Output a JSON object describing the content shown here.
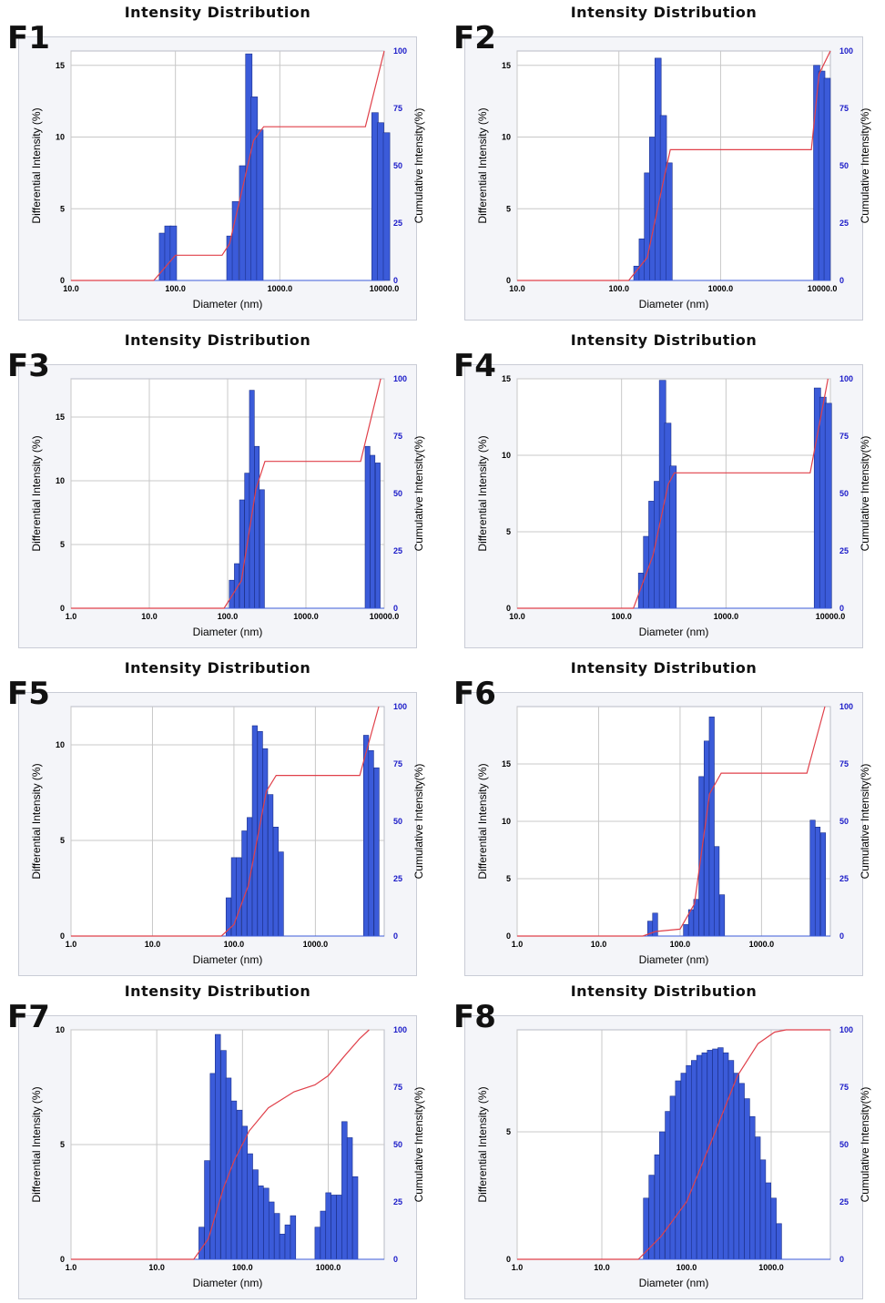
{
  "chart_data": [
    {
      "type": "bar",
      "panel": "F1",
      "title": "Intensity Distribution",
      "xlabel": "Diameter (nm)",
      "ylabel": "Differential Intensity (%)",
      "y2label": "Cumulative Intensity(%)",
      "x_scale": "log",
      "xlim": [
        10,
        10000
      ],
      "x_ticks": [
        "10.0",
        "100.0",
        "1000.0",
        "10000.0"
      ],
      "ylim": [
        0,
        16
      ],
      "y_ticks": [
        "0",
        "5",
        "10",
        "15"
      ],
      "y2_ticks": [
        "0",
        "25",
        "50",
        "75",
        "100"
      ],
      "grid": true,
      "bars": [
        {
          "x": 70,
          "y": 3.3
        },
        {
          "x": 79,
          "y": 3.8
        },
        {
          "x": 89,
          "y": 3.8
        },
        {
          "x": 310,
          "y": 3.1
        },
        {
          "x": 350,
          "y": 5.5
        },
        {
          "x": 410,
          "y": 8.0
        },
        {
          "x": 470,
          "y": 15.8
        },
        {
          "x": 530,
          "y": 12.8
        },
        {
          "x": 600,
          "y": 10.5
        },
        {
          "x": 7600,
          "y": 11.7
        },
        {
          "x": 8600,
          "y": 11.0
        },
        {
          "x": 9800,
          "y": 10.3
        }
      ],
      "cumulative": [
        {
          "x": 10,
          "y": 0
        },
        {
          "x": 62,
          "y": 0
        },
        {
          "x": 100,
          "y": 11
        },
        {
          "x": 280,
          "y": 11
        },
        {
          "x": 330,
          "y": 16
        },
        {
          "x": 560,
          "y": 61
        },
        {
          "x": 700,
          "y": 67
        },
        {
          "x": 6600,
          "y": 67
        },
        {
          "x": 10000,
          "y": 100
        }
      ]
    },
    {
      "type": "bar",
      "panel": "F2",
      "title": "Intensity Distribution",
      "xlabel": "Diameter (nm)",
      "ylabel": "Differential Intensity (%)",
      "y2label": "Cumulative Intensity(%)",
      "x_scale": "log",
      "xlim": [
        10,
        12000
      ],
      "x_ticks": [
        "10.0",
        "100.0",
        "1000.0",
        "10000.0"
      ],
      "ylim": [
        0,
        16
      ],
      "y_ticks": [
        "0",
        "5",
        "10",
        "15"
      ],
      "y2_ticks": [
        "0",
        "25",
        "50",
        "75",
        "100"
      ],
      "grid": true,
      "bars": [
        {
          "x": 140,
          "y": 1.0
        },
        {
          "x": 158,
          "y": 2.9
        },
        {
          "x": 178,
          "y": 7.5
        },
        {
          "x": 200,
          "y": 10.0
        },
        {
          "x": 226,
          "y": 15.5
        },
        {
          "x": 255,
          "y": 11.5
        },
        {
          "x": 290,
          "y": 8.2
        },
        {
          "x": 8200,
          "y": 15.0
        },
        {
          "x": 9200,
          "y": 14.6
        },
        {
          "x": 10400,
          "y": 14.1
        }
      ],
      "cumulative": [
        {
          "x": 10,
          "y": 0
        },
        {
          "x": 125,
          "y": 0
        },
        {
          "x": 190,
          "y": 10
        },
        {
          "x": 270,
          "y": 42
        },
        {
          "x": 320,
          "y": 57
        },
        {
          "x": 7800,
          "y": 57
        },
        {
          "x": 9300,
          "y": 90
        },
        {
          "x": 12000,
          "y": 100
        }
      ]
    },
    {
      "type": "bar",
      "panel": "F3",
      "title": "Intensity Distribution",
      "xlabel": "Diameter (nm)",
      "ylabel": "Differential Intensity (%)",
      "y2label": "Cumulative Intensity(%)",
      "x_scale": "log",
      "xlim": [
        1,
        10000
      ],
      "x_ticks": [
        "1.0",
        "10.0",
        "100.0",
        "1000.0",
        "10000.0"
      ],
      "ylim": [
        0,
        18
      ],
      "y_ticks": [
        "0",
        "5",
        "10",
        "15"
      ],
      "y2_ticks": [
        "0",
        "25",
        "50",
        "75",
        "100"
      ],
      "grid": true,
      "bars": [
        {
          "x": 105,
          "y": 2.2
        },
        {
          "x": 122,
          "y": 3.5
        },
        {
          "x": 142,
          "y": 8.5
        },
        {
          "x": 165,
          "y": 10.6
        },
        {
          "x": 190,
          "y": 17.1
        },
        {
          "x": 220,
          "y": 12.7
        },
        {
          "x": 256,
          "y": 9.3
        },
        {
          "x": 5700,
          "y": 12.7
        },
        {
          "x": 6600,
          "y": 12.0
        },
        {
          "x": 7700,
          "y": 11.4
        }
      ],
      "cumulative": [
        {
          "x": 1,
          "y": 0
        },
        {
          "x": 90,
          "y": 0
        },
        {
          "x": 150,
          "y": 12
        },
        {
          "x": 230,
          "y": 52
        },
        {
          "x": 300,
          "y": 64
        },
        {
          "x": 5000,
          "y": 64
        },
        {
          "x": 9000,
          "y": 100
        }
      ]
    },
    {
      "type": "bar",
      "panel": "F4",
      "title": "Intensity Distribution",
      "xlabel": "Diameter (nm)",
      "ylabel": "Differential Intensity (%)",
      "y2label": "Cumulative Intensity(%)",
      "x_scale": "log",
      "xlim": [
        10,
        10000
      ],
      "x_ticks": [
        "10.0",
        "100.0",
        "1000.0",
        "10000.0"
      ],
      "ylim": [
        0,
        15
      ],
      "y_ticks": [
        "0",
        "5",
        "10",
        "15"
      ],
      "y2_ticks": [
        "0",
        "25",
        "50",
        "75",
        "100"
      ],
      "grid": true,
      "bars": [
        {
          "x": 145,
          "y": 2.3
        },
        {
          "x": 162,
          "y": 4.7
        },
        {
          "x": 182,
          "y": 7.0
        },
        {
          "x": 205,
          "y": 8.3
        },
        {
          "x": 230,
          "y": 14.9
        },
        {
          "x": 258,
          "y": 12.1
        },
        {
          "x": 290,
          "y": 9.3
        },
        {
          "x": 7000,
          "y": 14.4
        },
        {
          "x": 7900,
          "y": 13.8
        },
        {
          "x": 8900,
          "y": 13.4
        }
      ],
      "cumulative": [
        {
          "x": 10,
          "y": 0
        },
        {
          "x": 130,
          "y": 0
        },
        {
          "x": 200,
          "y": 23
        },
        {
          "x": 280,
          "y": 54
        },
        {
          "x": 320,
          "y": 59
        },
        {
          "x": 6400,
          "y": 59
        },
        {
          "x": 9500,
          "y": 100
        }
      ]
    },
    {
      "type": "bar",
      "panel": "F5",
      "title": "Intensity Distribution",
      "xlabel": "Diameter (nm)",
      "ylabel": "Differential Intensity (%)",
      "y2label": "Cumulative Intensity(%)",
      "x_scale": "log",
      "xlim": [
        1,
        7000
      ],
      "x_ticks": [
        "1.0",
        "10.0",
        "100.0",
        "1000.0"
      ],
      "ylim": [
        0,
        12
      ],
      "y_ticks": [
        "0",
        "5",
        "10"
      ],
      "y2_ticks": [
        "0",
        "25",
        "50",
        "75",
        "100"
      ],
      "grid": true,
      "bars": [
        {
          "x": 80,
          "y": 2.0
        },
        {
          "x": 93,
          "y": 4.1
        },
        {
          "x": 107,
          "y": 4.1
        },
        {
          "x": 125,
          "y": 5.5
        },
        {
          "x": 145,
          "y": 6.2
        },
        {
          "x": 168,
          "y": 11.0
        },
        {
          "x": 195,
          "y": 10.7
        },
        {
          "x": 225,
          "y": 9.8
        },
        {
          "x": 262,
          "y": 7.4
        },
        {
          "x": 304,
          "y": 5.7
        },
        {
          "x": 352,
          "y": 4.4
        },
        {
          "x": 3900,
          "y": 10.5
        },
        {
          "x": 4500,
          "y": 9.7
        },
        {
          "x": 5250,
          "y": 8.8
        }
      ],
      "cumulative": [
        {
          "x": 1,
          "y": 0
        },
        {
          "x": 70,
          "y": 0
        },
        {
          "x": 100,
          "y": 5
        },
        {
          "x": 150,
          "y": 22
        },
        {
          "x": 250,
          "y": 63
        },
        {
          "x": 330,
          "y": 70
        },
        {
          "x": 3500,
          "y": 70
        },
        {
          "x": 6000,
          "y": 100
        }
      ]
    },
    {
      "type": "bar",
      "panel": "F6",
      "title": "Intensity Distribution",
      "xlabel": "Diameter (nm)",
      "ylabel": "Differential Intensity (%)",
      "y2label": "Cumulative Intensity(%)",
      "x_scale": "log",
      "xlim": [
        1,
        7000
      ],
      "x_ticks": [
        "1.0",
        "10.0",
        "100.0",
        "1000.0"
      ],
      "ylim": [
        0,
        20
      ],
      "y_ticks": [
        "0",
        "5",
        "10",
        "15"
      ],
      "y2_ticks": [
        "0",
        "25",
        "50",
        "75",
        "100"
      ],
      "grid": true,
      "bars": [
        {
          "x": 40,
          "y": 1.3
        },
        {
          "x": 46,
          "y": 2.0
        },
        {
          "x": 110,
          "y": 1.0
        },
        {
          "x": 127,
          "y": 2.3
        },
        {
          "x": 147,
          "y": 3.2
        },
        {
          "x": 170,
          "y": 13.9
        },
        {
          "x": 197,
          "y": 17.0
        },
        {
          "x": 228,
          "y": 19.1
        },
        {
          "x": 262,
          "y": 7.8
        },
        {
          "x": 305,
          "y": 3.6
        },
        {
          "x": 3950,
          "y": 10.1
        },
        {
          "x": 4550,
          "y": 9.5
        },
        {
          "x": 5300,
          "y": 9.0
        }
      ],
      "cumulative": [
        {
          "x": 1,
          "y": 0
        },
        {
          "x": 35,
          "y": 0
        },
        {
          "x": 50,
          "y": 2
        },
        {
          "x": 100,
          "y": 3
        },
        {
          "x": 150,
          "y": 14
        },
        {
          "x": 230,
          "y": 62
        },
        {
          "x": 320,
          "y": 71
        },
        {
          "x": 3600,
          "y": 71
        },
        {
          "x": 6000,
          "y": 100
        }
      ]
    },
    {
      "type": "bar",
      "panel": "F7",
      "title": "Intensity Distribution",
      "xlabel": "Diameter (nm)",
      "ylabel": "Differential Intensity (%)",
      "y2label": "Cumulative Intensity(%)",
      "x_scale": "log",
      "xlim": [
        1,
        4500
      ],
      "x_ticks": [
        "1.0",
        "10.0",
        "100.0",
        "1000.0"
      ],
      "ylim": [
        0,
        10
      ],
      "y_ticks": [
        "0",
        "5",
        "10"
      ],
      "y2_ticks": [
        "0",
        "25",
        "50",
        "75",
        "100"
      ],
      "grid": true,
      "bars": [
        {
          "x": 31,
          "y": 1.4
        },
        {
          "x": 36,
          "y": 4.3
        },
        {
          "x": 42,
          "y": 8.1
        },
        {
          "x": 48,
          "y": 9.8
        },
        {
          "x": 56,
          "y": 9.1
        },
        {
          "x": 64,
          "y": 7.9
        },
        {
          "x": 74,
          "y": 6.9
        },
        {
          "x": 86,
          "y": 6.5
        },
        {
          "x": 99,
          "y": 5.8
        },
        {
          "x": 114,
          "y": 4.6
        },
        {
          "x": 132,
          "y": 3.9
        },
        {
          "x": 152,
          "y": 3.2
        },
        {
          "x": 176,
          "y": 3.1
        },
        {
          "x": 203,
          "y": 2.5
        },
        {
          "x": 235,
          "y": 2.0
        },
        {
          "x": 271,
          "y": 1.1
        },
        {
          "x": 313,
          "y": 1.5
        },
        {
          "x": 362,
          "y": 1.9
        },
        {
          "x": 700,
          "y": 1.4
        },
        {
          "x": 810,
          "y": 2.1
        },
        {
          "x": 935,
          "y": 2.9
        },
        {
          "x": 1080,
          "y": 2.8
        },
        {
          "x": 1250,
          "y": 2.8
        },
        {
          "x": 1440,
          "y": 6.0
        },
        {
          "x": 1660,
          "y": 5.3
        },
        {
          "x": 1920,
          "y": 3.6
        }
      ],
      "cumulative": [
        {
          "x": 1,
          "y": 0
        },
        {
          "x": 27,
          "y": 0
        },
        {
          "x": 40,
          "y": 9
        },
        {
          "x": 60,
          "y": 31
        },
        {
          "x": 80,
          "y": 43
        },
        {
          "x": 120,
          "y": 56
        },
        {
          "x": 200,
          "y": 66
        },
        {
          "x": 400,
          "y": 73
        },
        {
          "x": 700,
          "y": 76
        },
        {
          "x": 1000,
          "y": 80
        },
        {
          "x": 1500,
          "y": 88
        },
        {
          "x": 2300,
          "y": 96
        },
        {
          "x": 3000,
          "y": 100
        }
      ]
    },
    {
      "type": "bar",
      "panel": "F8",
      "title": "Intensity Distribution",
      "xlabel": "Diameter (nm)",
      "ylabel": "Differential Intensity (%)",
      "y2label": "Cumulative Intensity(%)",
      "x_scale": "log",
      "xlim": [
        1,
        5000
      ],
      "x_ticks": [
        "1.0",
        "10.0",
        "100.0",
        "1000.0"
      ],
      "ylim": [
        0,
        9
      ],
      "y_ticks": [
        "0",
        "5"
      ],
      "y2_ticks": [
        "0",
        "25",
        "50",
        "75",
        "100"
      ],
      "grid": true,
      "bars": [
        {
          "x": 31,
          "y": 2.4
        },
        {
          "x": 36,
          "y": 3.3
        },
        {
          "x": 42,
          "y": 4.1
        },
        {
          "x": 48,
          "y": 5.0
        },
        {
          "x": 56,
          "y": 5.8
        },
        {
          "x": 64,
          "y": 6.4
        },
        {
          "x": 74,
          "y": 7.0
        },
        {
          "x": 86,
          "y": 7.3
        },
        {
          "x": 99,
          "y": 7.6
        },
        {
          "x": 114,
          "y": 7.8
        },
        {
          "x": 132,
          "y": 8.0
        },
        {
          "x": 152,
          "y": 8.1
        },
        {
          "x": 176,
          "y": 8.2
        },
        {
          "x": 203,
          "y": 8.25
        },
        {
          "x": 235,
          "y": 8.3
        },
        {
          "x": 271,
          "y": 8.1
        },
        {
          "x": 313,
          "y": 7.8
        },
        {
          "x": 362,
          "y": 7.3
        },
        {
          "x": 418,
          "y": 6.9
        },
        {
          "x": 483,
          "y": 6.3
        },
        {
          "x": 558,
          "y": 5.6
        },
        {
          "x": 645,
          "y": 4.8
        },
        {
          "x": 745,
          "y": 3.9
        },
        {
          "x": 860,
          "y": 3.0
        },
        {
          "x": 995,
          "y": 2.4
        },
        {
          "x": 1150,
          "y": 1.4
        }
      ],
      "cumulative": [
        {
          "x": 1,
          "y": 0
        },
        {
          "x": 27,
          "y": 0
        },
        {
          "x": 50,
          "y": 10
        },
        {
          "x": 100,
          "y": 25
        },
        {
          "x": 200,
          "y": 52
        },
        {
          "x": 400,
          "y": 80
        },
        {
          "x": 700,
          "y": 94
        },
        {
          "x": 1100,
          "y": 99
        },
        {
          "x": 1500,
          "y": 100
        },
        {
          "x": 5000,
          "y": 100
        }
      ]
    }
  ],
  "colors": {
    "bar": "#3b5bd9",
    "bar_edge": "#1a2f8a",
    "cumulative": "#e0404a",
    "right_axis": "#1a1ac8"
  }
}
